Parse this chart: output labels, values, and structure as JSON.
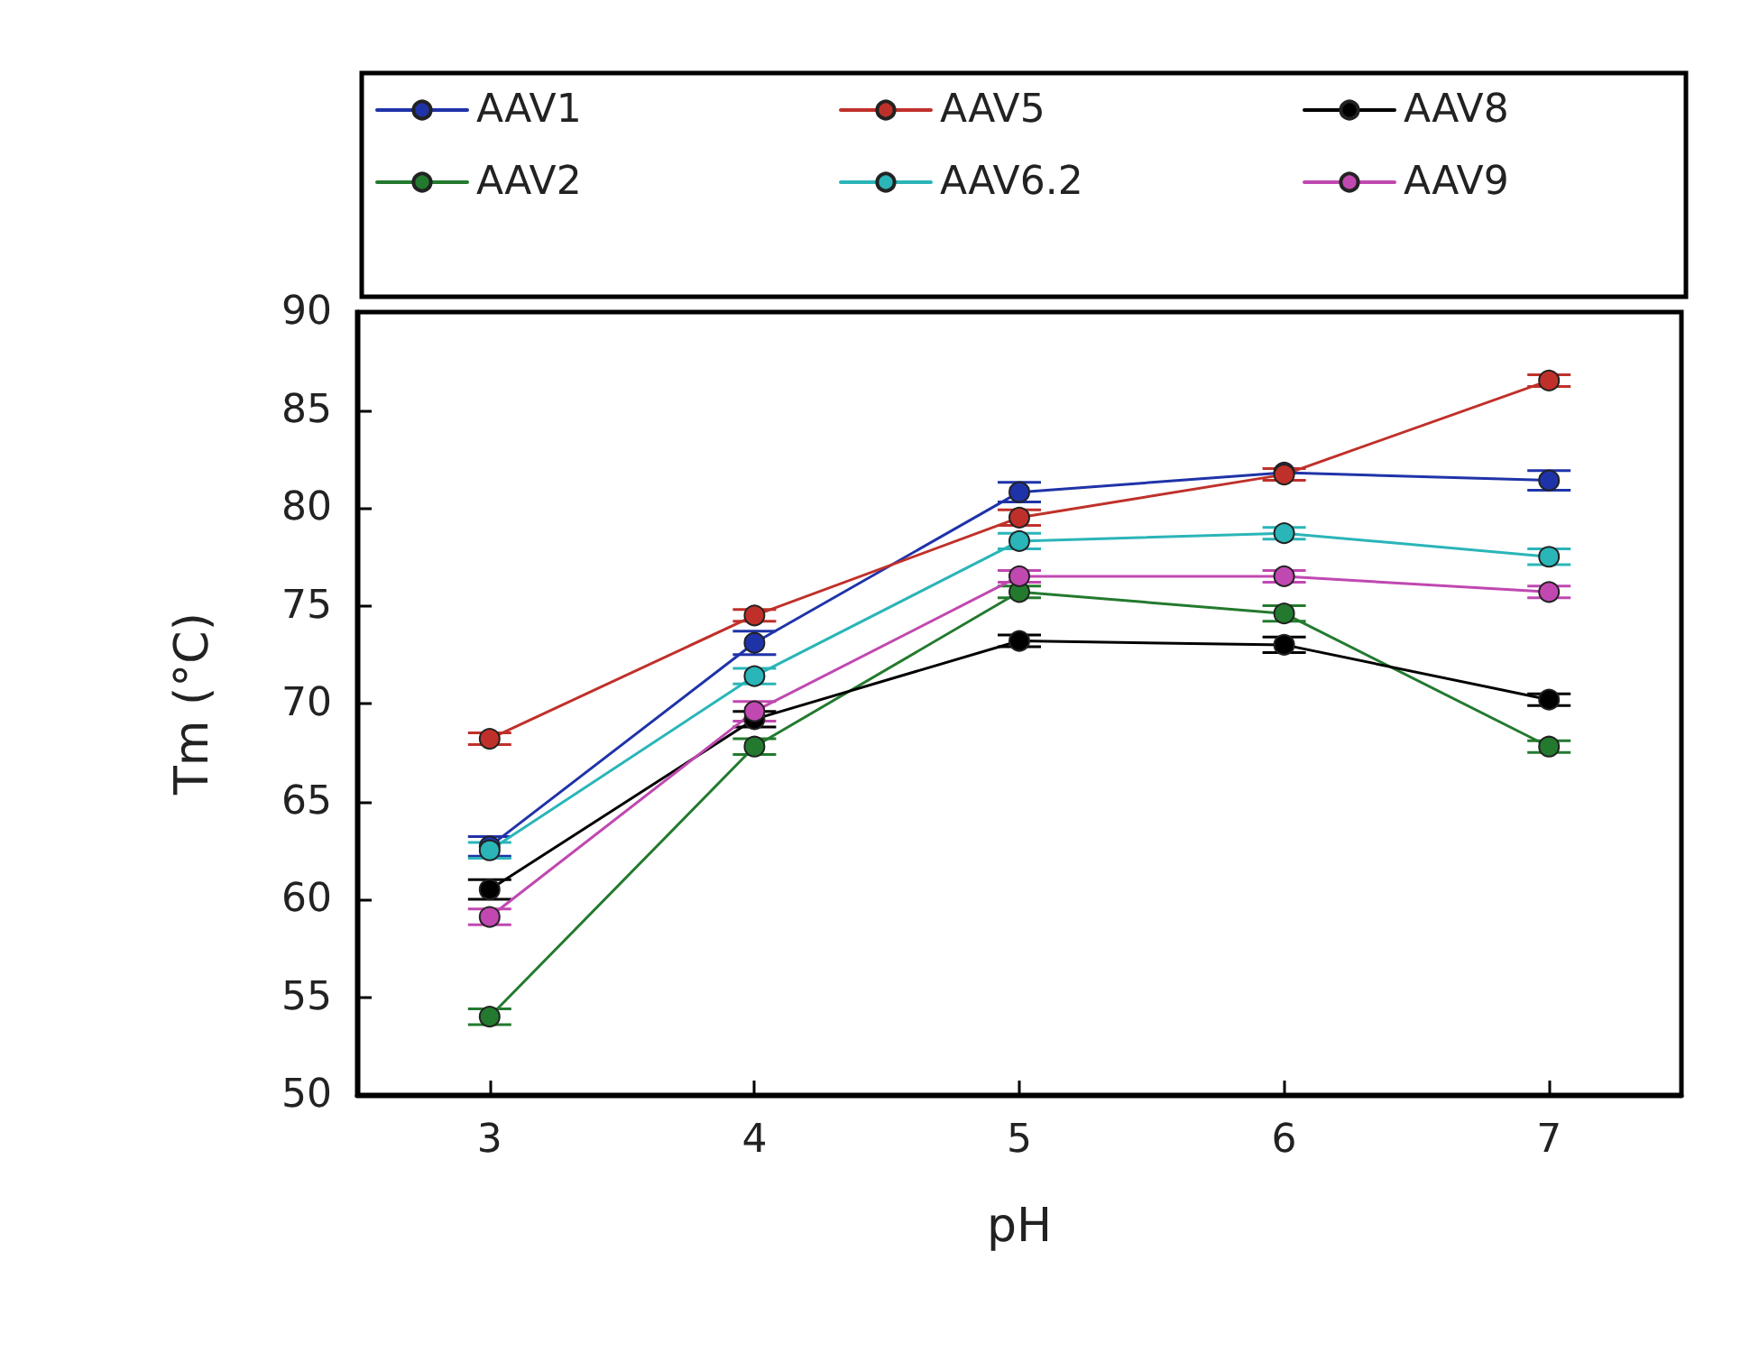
{
  "chart_data": {
    "type": "line",
    "xlabel": "pH",
    "ylabel": "Tm (°C)",
    "x": [
      3,
      4,
      5,
      6,
      7
    ],
    "xlim": [
      2.5,
      7.5
    ],
    "xticks": [
      3,
      4,
      5,
      6,
      7
    ],
    "ylim": [
      50,
      90
    ],
    "yticks": [
      50,
      55,
      60,
      65,
      70,
      75,
      80,
      85,
      90
    ],
    "grid": false,
    "legend": "top",
    "marker": "circle",
    "line_style": "solid",
    "series": [
      {
        "name": "AAV1",
        "color": "#1f33a8",
        "values": [
          62.7,
          73.1,
          80.8,
          81.8,
          81.4
        ],
        "errors": [
          0.5,
          0.6,
          0.5,
          null,
          0.5
        ]
      },
      {
        "name": "AAV2",
        "color": "#237a2e",
        "values": [
          54.0,
          67.8,
          75.7,
          74.6,
          67.8
        ],
        "errors": [
          0.4,
          0.4,
          0.3,
          0.4,
          0.3
        ]
      },
      {
        "name": "AAV5",
        "color": "#c0302a",
        "values": [
          68.2,
          74.5,
          79.5,
          81.7,
          86.5
        ],
        "errors": [
          0.3,
          0.3,
          0.4,
          0.3,
          0.3
        ]
      },
      {
        "name": "AAV6.2",
        "color": "#2ab5b8",
        "values": [
          62.5,
          71.4,
          78.3,
          78.7,
          77.5
        ],
        "errors": [
          0.4,
          0.4,
          0.4,
          0.3,
          0.4
        ]
      },
      {
        "name": "AAV8",
        "color": "#000000",
        "values": [
          60.5,
          69.2,
          73.2,
          73.0,
          70.2
        ],
        "errors": [
          0.5,
          0.4,
          0.3,
          0.4,
          0.3
        ]
      },
      {
        "name": "AAV9",
        "color": "#c048b0",
        "values": [
          59.1,
          69.6,
          76.5,
          76.5,
          75.7
        ],
        "errors": [
          0.4,
          0.5,
          0.3,
          0.3,
          0.3
        ]
      }
    ]
  }
}
